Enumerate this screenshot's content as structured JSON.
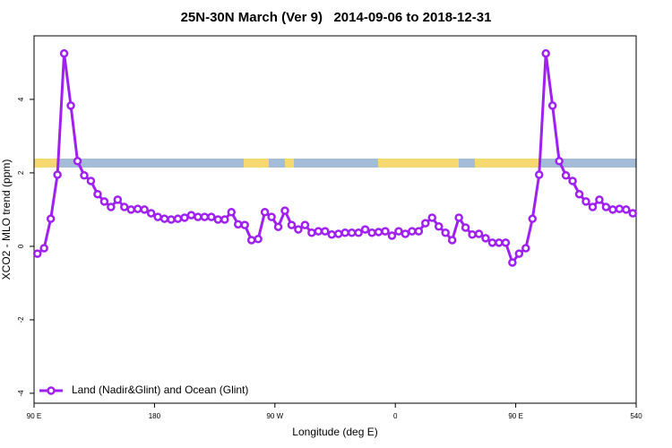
{
  "chart_data": {
    "type": "line",
    "title": "25N-30N March (Ver 9)   2014-09-06 to 2018-12-31",
    "xlabel": "Longitude (deg E)",
    "ylabel": "XCO2 - MLO trend (ppm)",
    "x": [
      92.5,
      97.5,
      102.5,
      107.5,
      112.5,
      117.5,
      122.5,
      127.5,
      132.5,
      137.5,
      142.5,
      147.5,
      152.5,
      157.5,
      162.5,
      167.5,
      172.5,
      177.5,
      182.5,
      187.5,
      192.5,
      197.5,
      202.5,
      207.5,
      212.5,
      217.5,
      222.5,
      227.5,
      232.5,
      237.5,
      242.5,
      247.5,
      252.5,
      257.5,
      262.5,
      267.5,
      272.5,
      277.5,
      282.5,
      287.5,
      292.5,
      297.5,
      302.5,
      307.5,
      312.5,
      317.5,
      322.5,
      327.5,
      332.5,
      337.5,
      342.5,
      347.5,
      352.5,
      357.5,
      362.5,
      367.5,
      372.5,
      377.5,
      382.5,
      387.5,
      392.5,
      397.5,
      402.5,
      407.5,
      412.5,
      417.5,
      422.5,
      427.5,
      432.5,
      437.5,
      442.5,
      447.5,
      452.5,
      457.5,
      462.5,
      467.5,
      472.5,
      477.5,
      482.5,
      487.5,
      492.5,
      497.5,
      502.5,
      507.5,
      512.5,
      517.5,
      522.5,
      527.5,
      532.5,
      537.5
    ],
    "series": [
      {
        "name": "Land (Nadir&Glint) and Ocean (Glint)",
        "color": "#a020f0",
        "values": [
          -0.2,
          -0.05,
          0.75,
          1.95,
          5.25,
          3.83,
          2.32,
          1.93,
          1.78,
          1.42,
          1.22,
          1.07,
          1.27,
          1.07,
          1.0,
          1.02,
          1.0,
          0.9,
          0.8,
          0.75,
          0.73,
          0.75,
          0.78,
          0.85,
          0.8,
          0.8,
          0.8,
          0.73,
          0.73,
          0.93,
          0.6,
          0.58,
          0.17,
          0.2,
          0.93,
          0.8,
          0.53,
          0.97,
          0.58,
          0.46,
          0.58,
          0.37,
          0.41,
          0.41,
          0.32,
          0.34,
          0.37,
          0.37,
          0.37,
          0.46,
          0.37,
          0.39,
          0.41,
          0.29,
          0.41,
          0.34,
          0.41,
          0.41,
          0.63,
          0.78,
          0.54,
          0.37,
          0.17,
          0.78,
          0.51,
          0.32,
          0.34,
          0.22,
          0.1,
          0.1,
          0.1,
          -0.44,
          -0.2,
          -0.05,
          0.75,
          1.95,
          5.25,
          3.83,
          2.32,
          1.93,
          1.78,
          1.42,
          1.22,
          1.07,
          1.27,
          1.07,
          1.0,
          1.02,
          1.0,
          0.9
        ]
      }
    ],
    "xlim": [
      90,
      540
    ],
    "xticks": [
      {
        "value": 90,
        "label": "90 E"
      },
      180,
      {
        "value": 270,
        "label": "90 W"
      },
      {
        "value": 360,
        "label": "0"
      },
      {
        "value": 450,
        "label": "90 E"
      },
      540
    ],
    "ylim": [
      -4.27,
      5.73
    ],
    "yticks": [
      -4,
      -2,
      0,
      2,
      4
    ],
    "legend": "bottom-left"
  }
}
